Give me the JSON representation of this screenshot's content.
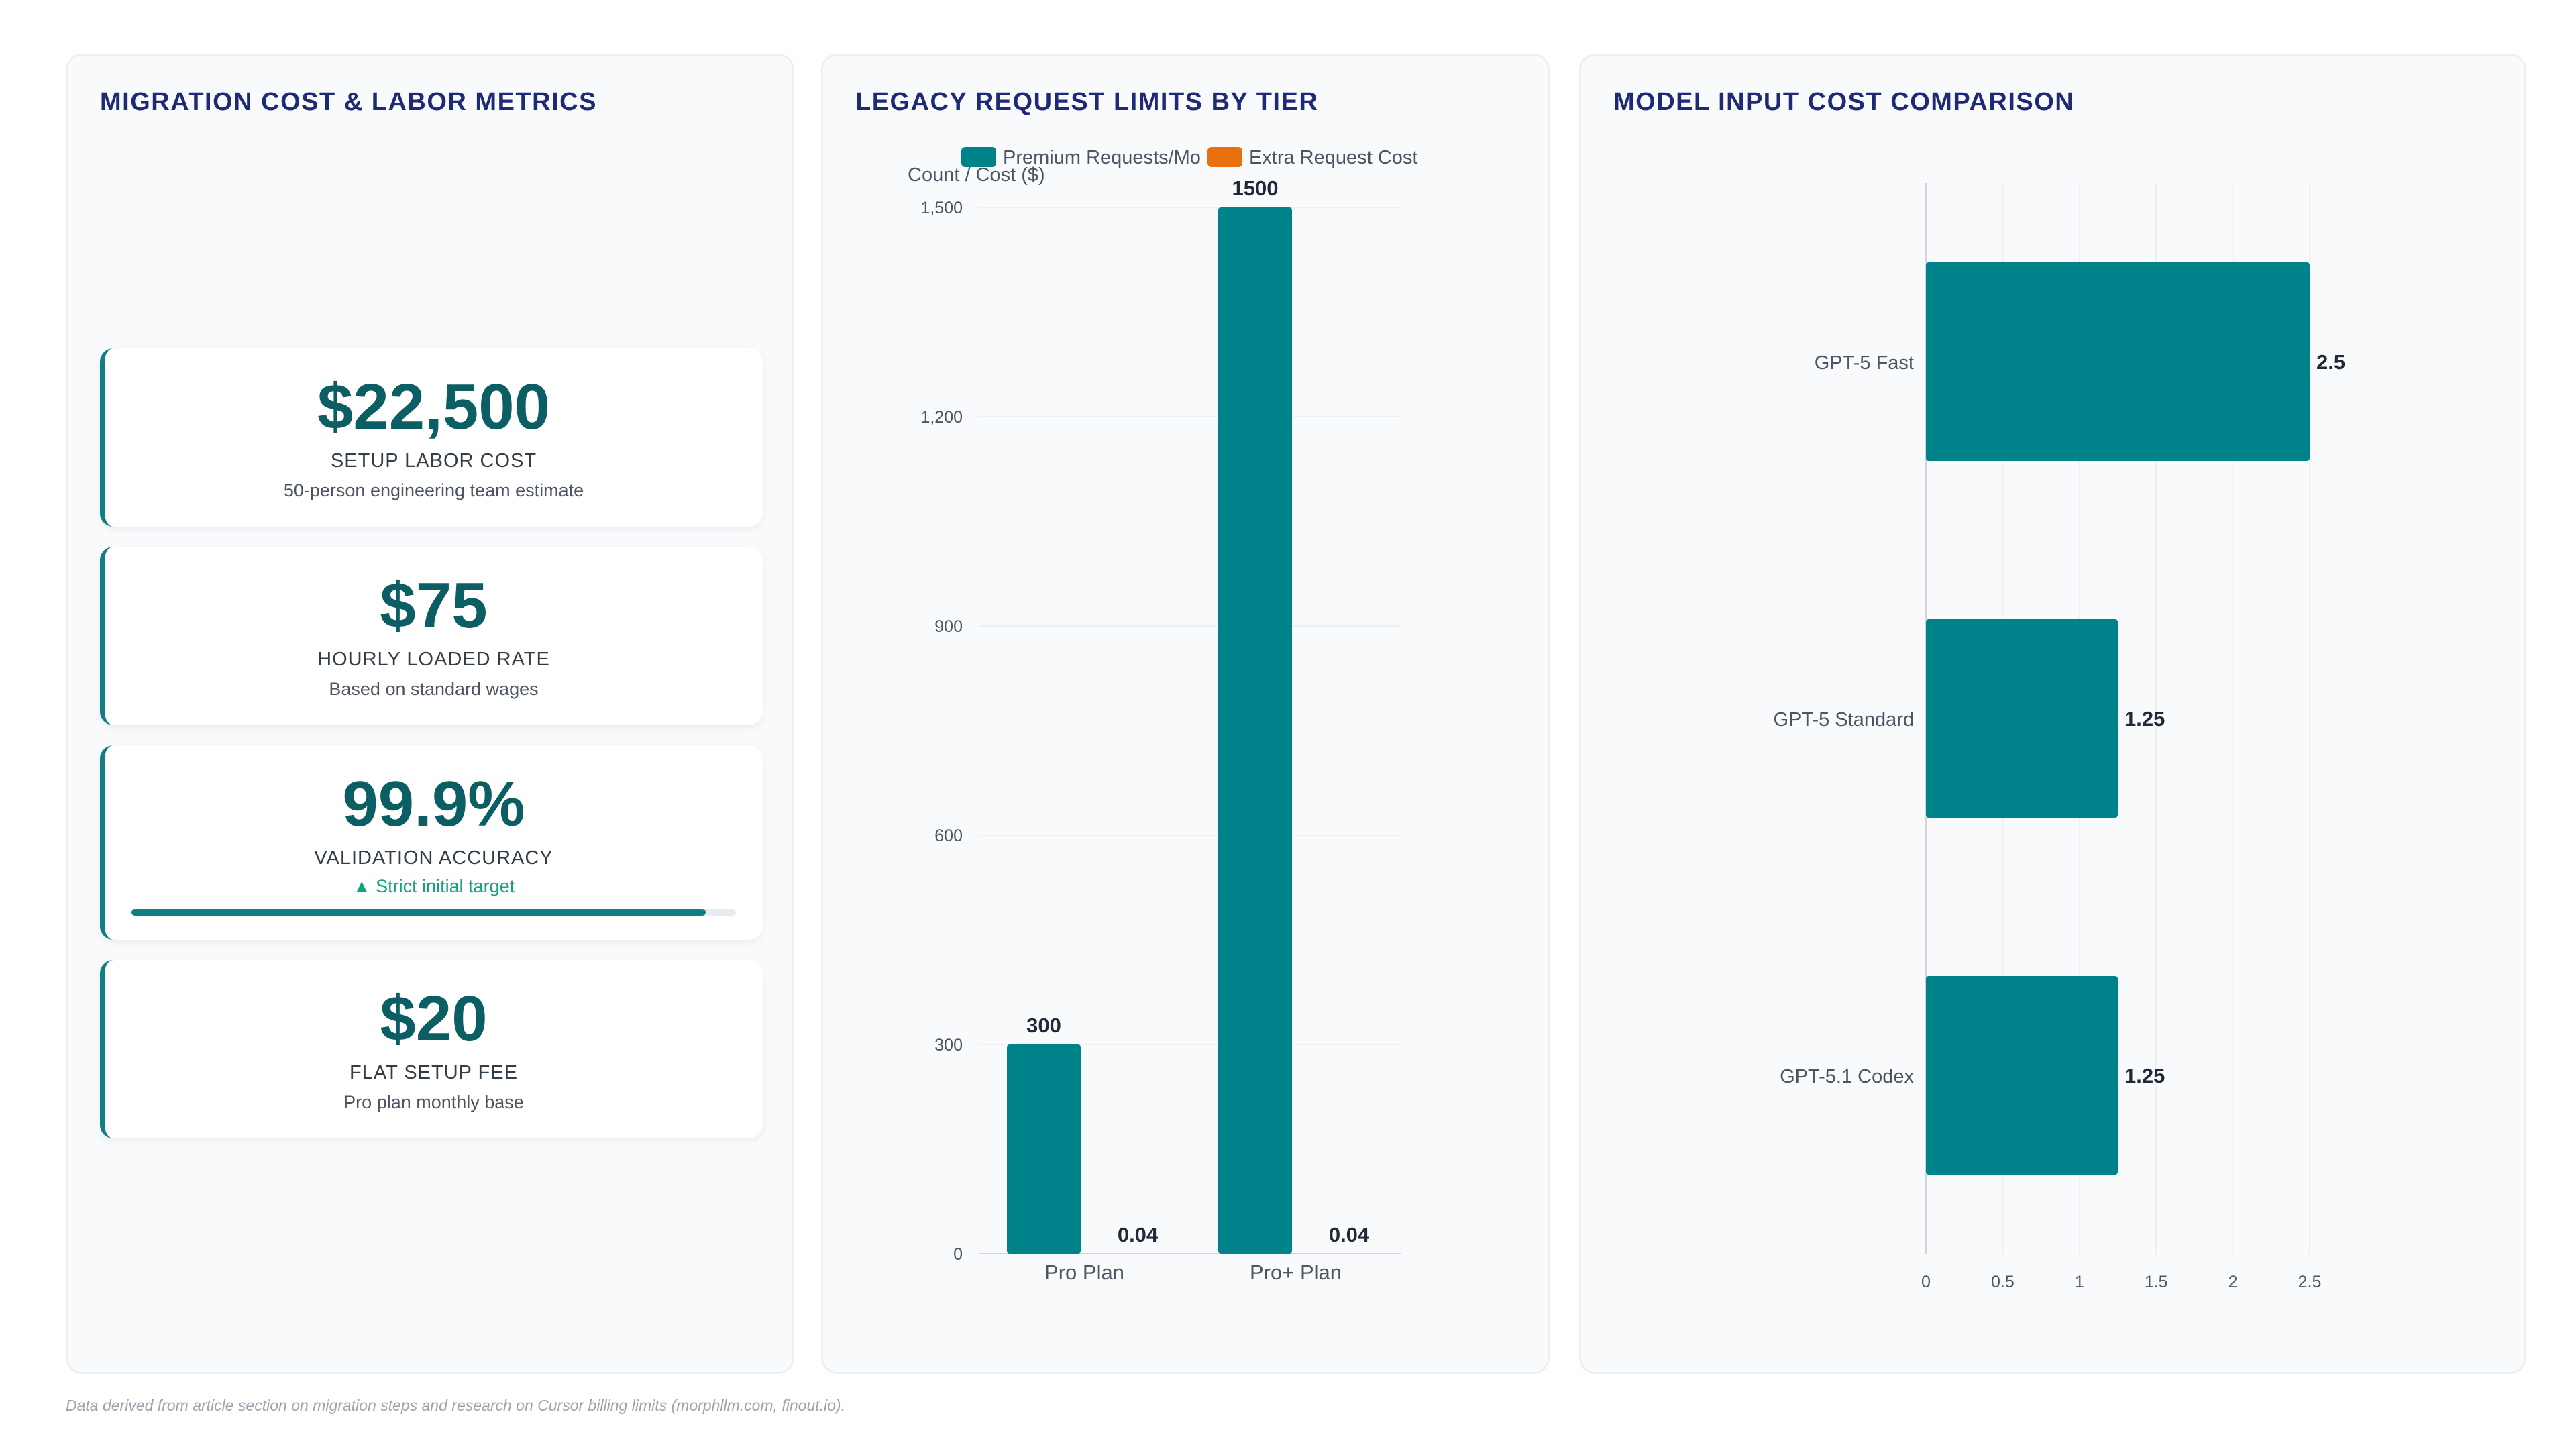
{
  "footnote": "Data derived from article section on migration steps and research on Cursor billing limits (morphllm.com, finout.io).",
  "panels": {
    "left": {
      "title": "MIGRATION COST & LABOR METRICS",
      "kpis": [
        {
          "value": "$22,500",
          "label": "SETUP LABOR COST",
          "sub": "50-person engineering team estimate"
        },
        {
          "value": "$75",
          "label": "HOURLY LOADED RATE",
          "sub": "Based on standard wages"
        },
        {
          "value": "99.9%",
          "label": "VALIDATION ACCURACY",
          "trend": "▲ Strict initial target",
          "progress": 0.95
        },
        {
          "value": "$20",
          "label": "FLAT SETUP FEE",
          "sub": "Pro plan monthly base"
        }
      ]
    },
    "mid": {
      "title": "LEGACY REQUEST LIMITS BY TIER"
    },
    "right": {
      "title": "MODEL INPUT COST COMPARISON"
    }
  },
  "chart_data": [
    {
      "type": "bar",
      "title": "LEGACY REQUEST LIMITS BY TIER",
      "categories": [
        "Pro Plan",
        "Pro+ Plan"
      ],
      "series": [
        {
          "name": "Premium Requests/Mo",
          "values": [
            300,
            1500
          ],
          "labels": [
            "300",
            "1500"
          ],
          "color": "#00828a"
        },
        {
          "name": "Extra Request Cost",
          "values": [
            0.04,
            0.04
          ],
          "labels": [
            "0.04",
            "0.04"
          ],
          "color": "#e8700f"
        }
      ],
      "ylabel": "Count / Cost ($)",
      "ylim": [
        0,
        1500
      ],
      "yticks": [
        0,
        300,
        600,
        900,
        1200,
        1500
      ],
      "ytick_labels": [
        "0",
        "300",
        "600",
        "900",
        "1,200",
        "1,500"
      ],
      "legend": "top",
      "grid": true
    },
    {
      "type": "bar",
      "orientation": "horizontal",
      "title": "MODEL INPUT COST COMPARISON",
      "categories": [
        "GPT-5 Fast",
        "GPT-5 Standard",
        "GPT-5.1 Codex"
      ],
      "values": [
        2.5,
        1.25,
        1.25
      ],
      "labels": [
        "2.5",
        "1.25",
        "1.25"
      ],
      "color": "#00828a",
      "xlim": [
        0,
        2.5
      ],
      "xticks": [
        0,
        0.5,
        1,
        1.5,
        2,
        2.5
      ],
      "xtick_labels": [
        "0",
        "0.5",
        "1",
        "1.5",
        "2",
        "2.5"
      ],
      "grid": true
    }
  ]
}
